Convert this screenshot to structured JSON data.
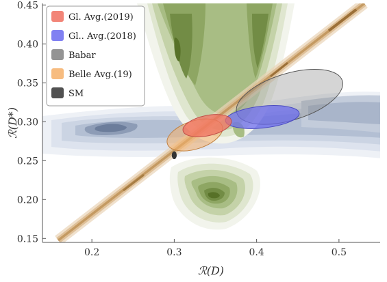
{
  "chart_data": {
    "type": "scatter",
    "title": "",
    "xlabel": "ℛ(D)",
    "ylabel": "ℛ(D*)",
    "xlim": [
      0.14,
      0.55
    ],
    "ylim": [
      0.145,
      0.452
    ],
    "xticks": [
      0.2,
      0.3,
      0.4,
      0.5
    ],
    "xtick_labels": [
      "0.2",
      "0.3",
      "0.4",
      "0.5"
    ],
    "yticks": [
      0.15,
      0.2,
      0.25,
      0.3,
      0.35,
      0.4,
      0.45
    ],
    "ytick_labels": [
      "0.15",
      "0.20",
      "0.25",
      "0.30",
      "0.35",
      "0.40",
      "0.45"
    ],
    "grid": false,
    "legend_position": "top-left",
    "series": [
      {
        "name": "Gl. Avg.(2019)",
        "color": "#f07060",
        "shape": "ellipse",
        "center": [
          0.34,
          0.295
        ],
        "rx": 0.03,
        "ry": 0.013,
        "angle_deg": 12
      },
      {
        "name": "Gl.. Avg.(2018)",
        "color": "#6a6af0",
        "shape": "ellipse",
        "center": [
          0.407,
          0.306
        ],
        "rx": 0.045,
        "ry": 0.014,
        "angle_deg": 6
      },
      {
        "name": "Babar",
        "color": "#888888",
        "shape": "ellipse",
        "center": [
          0.44,
          0.332
        ],
        "rx": 0.067,
        "ry": 0.03,
        "angle_deg": 17
      },
      {
        "name": "Belle Avg.(19)",
        "color": "#f6b06a",
        "shape": "ellipse",
        "center": [
          0.325,
          0.283
        ],
        "rx": 0.035,
        "ry": 0.018,
        "angle_deg": 18
      },
      {
        "name": "SM",
        "color": "#333333",
        "shape": "point",
        "center": [
          0.3,
          0.257
        ],
        "rx": 0.003,
        "ry": 0.005
      }
    ]
  }
}
